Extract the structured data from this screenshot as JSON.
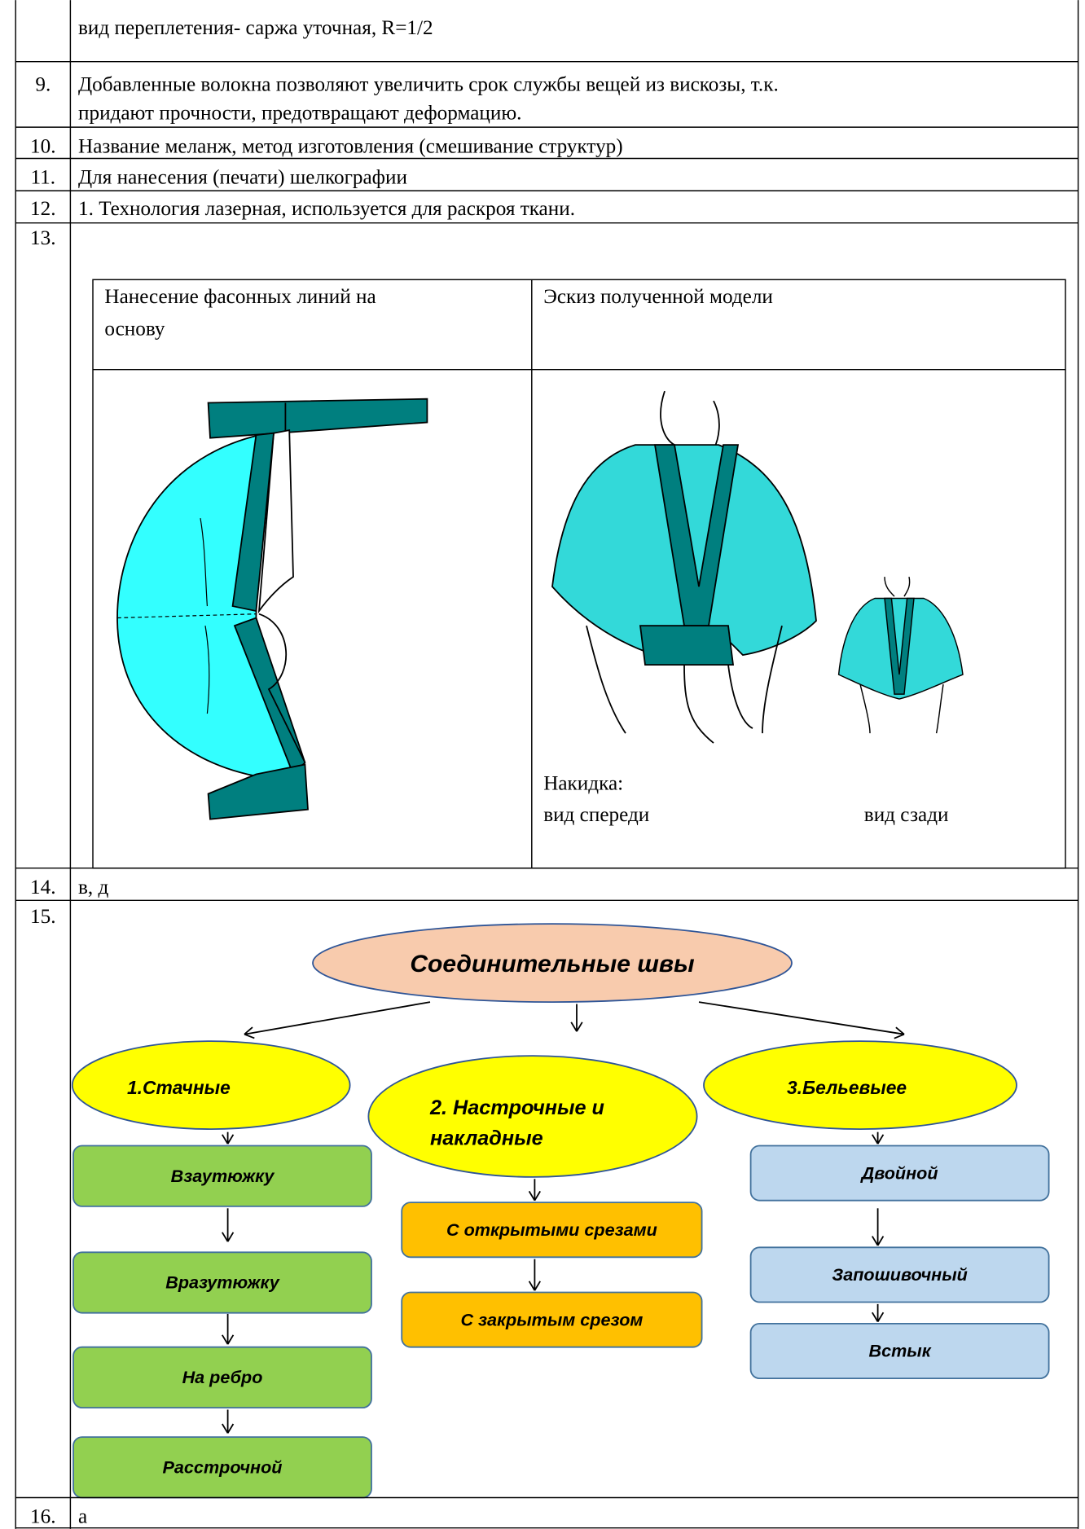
{
  "rows": [
    {
      "lines": [
        "вид переплетения- саржа уточная, R=1/2"
      ]
    },
    {
      "number": "9.",
      "lines": [
        "Добавленные волокна позволяют увеличить срок службы вещей из вискозы, т.к.",
        "придают прочности, предотвращают деформацию."
      ]
    },
    {
      "number": "10.",
      "lines": [
        "Название меланж, метод изготовления (смешивание структур)"
      ]
    },
    {
      "number": "11.",
      "lines": [
        "Для нанесения (печати) шелкографии"
      ]
    },
    {
      "number": "12.",
      "lines": [
        "1. Технология лазерная, используется для раскроя ткани."
      ]
    },
    {
      "number": "13."
    },
    {
      "number": "14.",
      "lines": [
        "в, д"
      ]
    },
    {
      "number": "15."
    },
    {
      "number": "16.",
      "lines": [
        "а"
      ]
    }
  ],
  "model_table": {
    "headers": [
      [
        "Нанесение фасонных линий на",
        "основу"
      ],
      [
        "Эскиз полученной модели"
      ]
    ],
    "caption": {
      "title": "Накидка:",
      "front": "вид спереди",
      "back": "вид сзади"
    }
  },
  "seams_diagram": {
    "root": "Соединительные швы",
    "groups": [
      {
        "label": [
          "1.Стачные"
        ],
        "items": [
          "Взаутюжку",
          "Вразутюжку",
          "На ребро",
          "Расстрочной"
        ]
      },
      {
        "label": [
          "2. Настрочные и",
          "накладные"
        ],
        "items": [
          "С открытыми срезами",
          "С закрытым срезом"
        ]
      },
      {
        "label": [
          "3.Бельевыее"
        ],
        "items": [
          "Двойной",
          "Запошивочный",
          "Встык"
        ]
      }
    ]
  }
}
